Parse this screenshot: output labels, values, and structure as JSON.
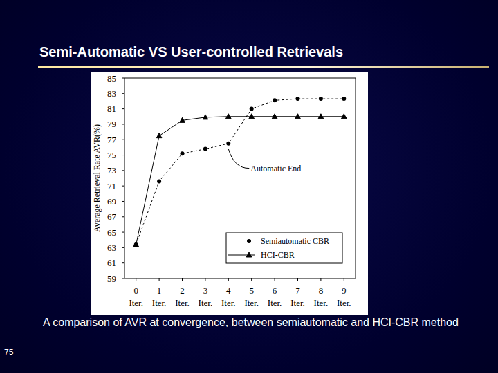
{
  "slide": {
    "title": "Semi-Automatic VS User-controlled Retrievals",
    "caption": "A comparison of AVR at convergence, between semiautomatic and HCI-CBR method",
    "page_number": "75"
  },
  "chart_data": {
    "type": "line",
    "y_label": "Average Retrieval Rate AVR(%)",
    "categories": [
      "0 Iter.",
      "1 Iter.",
      "2 Iter.",
      "3 Iter.",
      "4 Iter.",
      "5 Iter.",
      "6 Iter.",
      "7 Iter.",
      "8 Iter.",
      "9 Iter."
    ],
    "series": [
      {
        "name": "Semiautomatic CBR",
        "color": "#000000",
        "marker": "circle",
        "line_style": "dashed",
        "values": [
          63.4,
          71.6,
          75.2,
          75.8,
          76.5,
          81.0,
          82.1,
          82.3,
          82.3,
          82.3
        ]
      },
      {
        "name": "HCI-CBR",
        "color": "#000000",
        "marker": "triangle",
        "line_style": "solid",
        "values": [
          63.4,
          77.5,
          79.5,
          79.9,
          80.0,
          80.0,
          80.0,
          80.0,
          80.0,
          80.0
        ]
      }
    ],
    "ylim": [
      59,
      85
    ],
    "yticks": [
      59,
      61,
      63,
      65,
      67,
      69,
      71,
      73,
      75,
      77,
      79,
      81,
      83,
      85
    ],
    "grid": false,
    "legend": "lower right",
    "annotations": [
      {
        "text": "Automatic End",
        "x": 4,
        "y": 75.8
      }
    ]
  }
}
